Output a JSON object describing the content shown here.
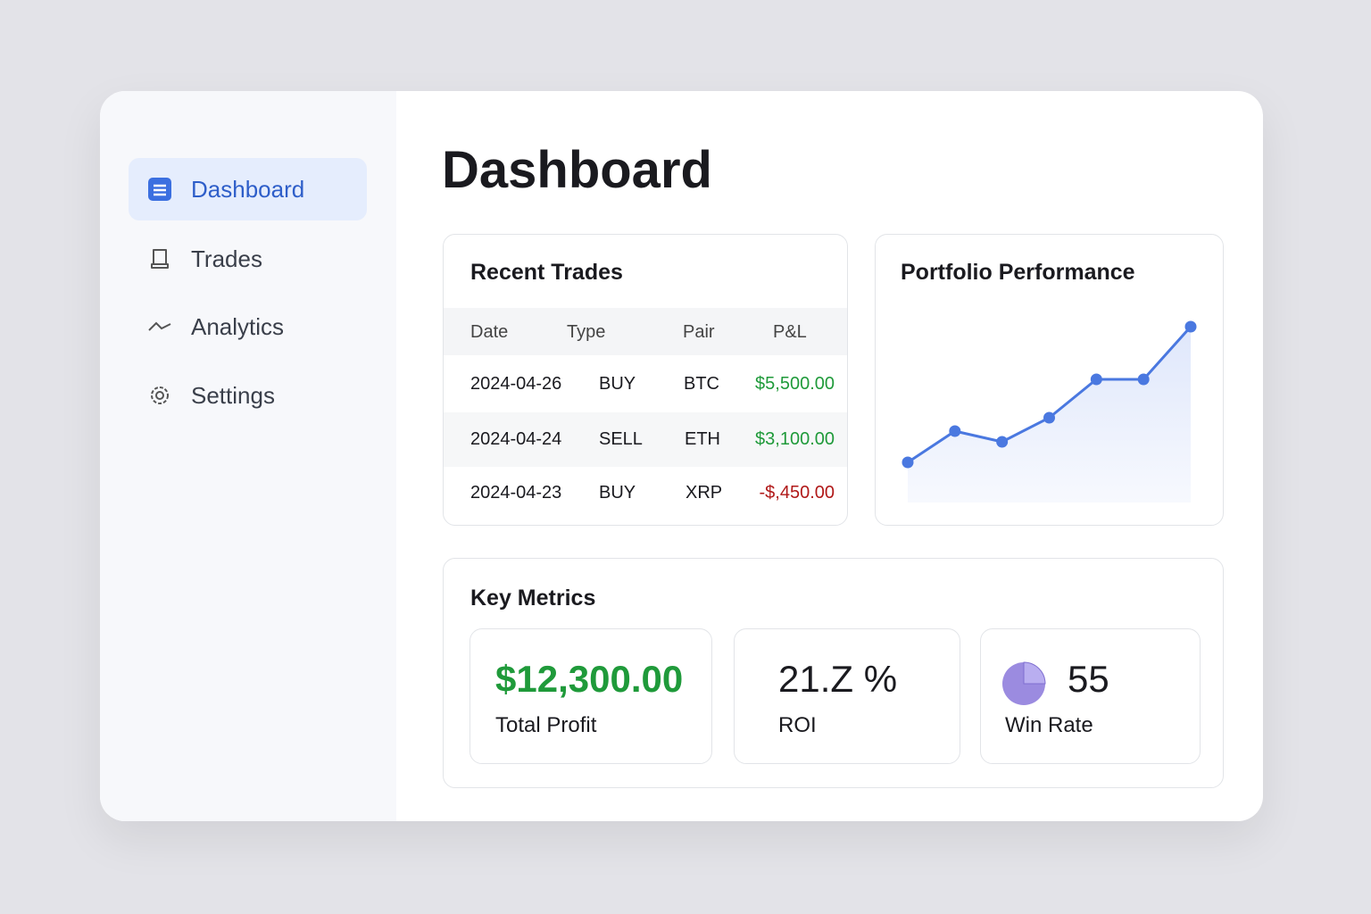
{
  "sidebar": {
    "items": [
      "Dashboard",
      "Trades",
      "Analytics",
      "Settings"
    ]
  },
  "header": {
    "title": "Dashboard"
  },
  "recent_trades": {
    "title": "Recent Trades",
    "columns": [
      "Date",
      "Type",
      "Pair",
      "P&L"
    ],
    "rows": [
      [
        "2024-04-26",
        "BUY",
        "BTC",
        "$5,500.00"
      ],
      [
        "2024-04-24",
        "SELL",
        "ETH",
        "$3,100.00"
      ],
      [
        "2024-04-23",
        "BUY",
        "XRP",
        "-$,450.00"
      ]
    ]
  },
  "portfolio": {
    "title": "Portfolio Performance",
    "chart_data": {
      "type": "line",
      "values": [
        45,
        80,
        68,
        95,
        138,
        138,
        197
      ],
      "color": "#4a78e0"
    }
  },
  "key_metrics": {
    "title": "Key Metrics",
    "cards": [
      {
        "value": "$12,300.00",
        "label": "Total Profit"
      },
      {
        "value": "21.Z %",
        "label": "ROI"
      },
      {
        "value": "55",
        "label": "Win Rate"
      }
    ]
  }
}
